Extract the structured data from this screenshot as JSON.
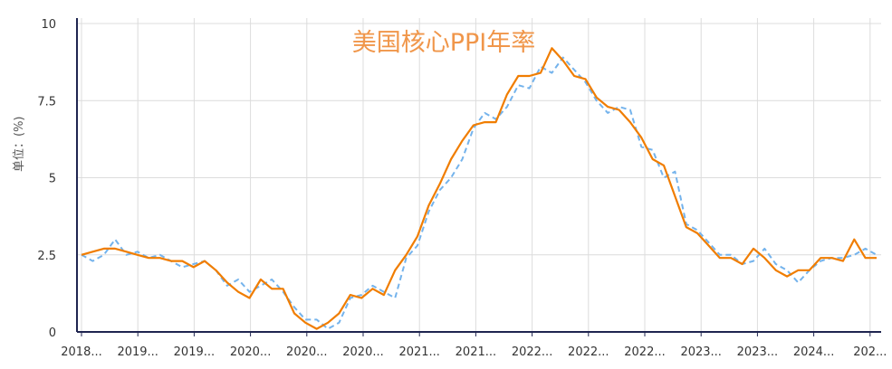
{
  "chart_data": {
    "type": "line",
    "title": "美国核心PPI年率",
    "ylabel": "单位：(%)",
    "ylim": [
      0,
      10
    ],
    "y_ticks": [
      "0",
      "2.5",
      "5",
      "7.5",
      "10"
    ],
    "x_tick_labels": [
      "2018...",
      "2019...",
      "2019...",
      "2020...",
      "2020...",
      "2020...",
      "2021...",
      "2021...",
      "2022...",
      "2022...",
      "2022...",
      "2023...",
      "2023...",
      "2024...",
      "202..."
    ],
    "grid": true,
    "series": [
      {
        "name": "",
        "color": "#f07d00",
        "style": "solid",
        "values": [
          2.5,
          2.6,
          2.7,
          2.7,
          2.6,
          2.5,
          2.4,
          2.4,
          2.3,
          2.3,
          2.1,
          2.3,
          2.0,
          1.6,
          1.3,
          1.1,
          1.7,
          1.4,
          1.4,
          0.6,
          0.3,
          0.1,
          0.3,
          0.6,
          1.2,
          1.1,
          1.4,
          1.2,
          2.0,
          2.5,
          3.1,
          4.1,
          4.8,
          5.6,
          6.2,
          6.7,
          6.8,
          6.8,
          7.7,
          8.3,
          8.3,
          8.4,
          9.2,
          8.8,
          8.3,
          8.2,
          7.6,
          7.3,
          7.2,
          6.8,
          6.3,
          5.6,
          5.4,
          4.4,
          3.4,
          3.2,
          2.8,
          2.4,
          2.4,
          2.2,
          2.7,
          2.4,
          2.0,
          1.8,
          2.0,
          2.0,
          2.4,
          2.4,
          2.3,
          3.0,
          2.4,
          2.4
        ]
      },
      {
        "name": "",
        "color": "#74b3ec",
        "style": "dashed",
        "values": [
          2.5,
          2.3,
          2.5,
          3.0,
          2.5,
          2.6,
          2.4,
          2.5,
          2.3,
          2.1,
          2.2,
          2.3,
          2.0,
          1.5,
          1.7,
          1.3,
          1.5,
          1.7,
          1.3,
          0.8,
          0.4,
          0.4,
          0.1,
          0.3,
          1.1,
          1.2,
          1.5,
          1.3,
          1.1,
          2.4,
          2.8,
          3.9,
          4.6,
          5.0,
          5.6,
          6.6,
          7.1,
          6.9,
          7.3,
          8.0,
          7.9,
          8.6,
          8.4,
          8.9,
          8.5,
          8.1,
          7.5,
          7.1,
          7.3,
          7.2,
          6.0,
          5.9,
          5.0,
          5.2,
          3.5,
          3.3,
          2.9,
          2.5,
          2.5,
          2.2,
          2.3,
          2.7,
          2.2,
          2.0,
          1.6,
          2.0,
          2.3,
          2.4,
          2.4,
          2.5,
          2.7,
          2.5
        ]
      }
    ]
  }
}
